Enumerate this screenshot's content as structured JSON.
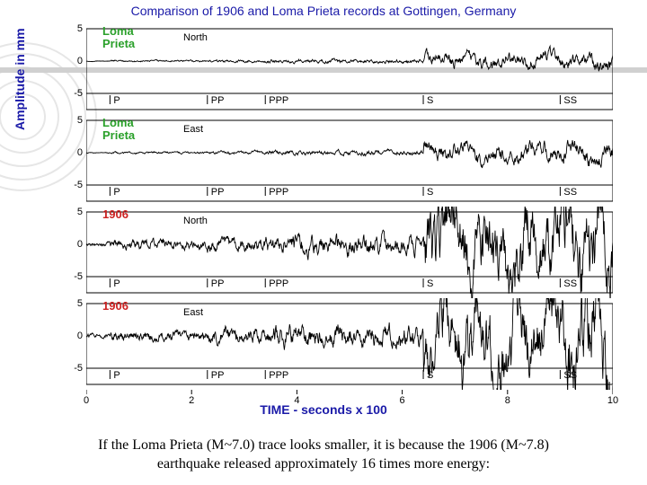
{
  "title": "Comparison of 1906 and Loma Prieta records at Gottingen, Germany",
  "yaxis_label": "Amplitude in mm",
  "xaxis_label": "TIME - seconds x 100",
  "title_color": "#1a1aa8",
  "axis_label_color": "#1a1aa8",
  "line_color": "#000000",
  "background_color": "#ffffff",
  "title_fontsize": 14,
  "axis_fontsize": 14,
  "tick_fontsize": 11,
  "xlim": [
    0,
    10
  ],
  "xticks": [
    0,
    2,
    4,
    6,
    8,
    10
  ],
  "ylim": [
    -5,
    5
  ],
  "yticks": [
    -5,
    0,
    5
  ],
  "n_panels": 4,
  "phase_markers": [
    {
      "label": "P",
      "x": 0.45
    },
    {
      "label": "PP",
      "x": 2.3
    },
    {
      "label": "PPP",
      "x": 3.4
    },
    {
      "label": "S",
      "x": 6.4
    },
    {
      "label": "SS",
      "x": 9.0
    }
  ],
  "panels": [
    {
      "trace_label": "Loma\nPrieta",
      "trace_color": "#2aa02a",
      "direction": "North",
      "amplitude_scale": 0.18
    },
    {
      "trace_label": "Loma\nPrieta",
      "trace_color": "#2aa02a",
      "direction": "East",
      "amplitude_scale": 0.22
    },
    {
      "trace_label": "1906",
      "trace_color": "#cc2222",
      "direction": "North",
      "amplitude_scale": 0.95
    },
    {
      "trace_label": "1906",
      "trace_color": "#cc2222",
      "direction": "East",
      "amplitude_scale": 1.0
    }
  ],
  "caption_line1": "If the Loma Prieta (M~7.0) trace looks smaller, it is because the 1906 (M~7.8)",
  "caption_line2": "earthquake released approximately 16 times more energy:"
}
